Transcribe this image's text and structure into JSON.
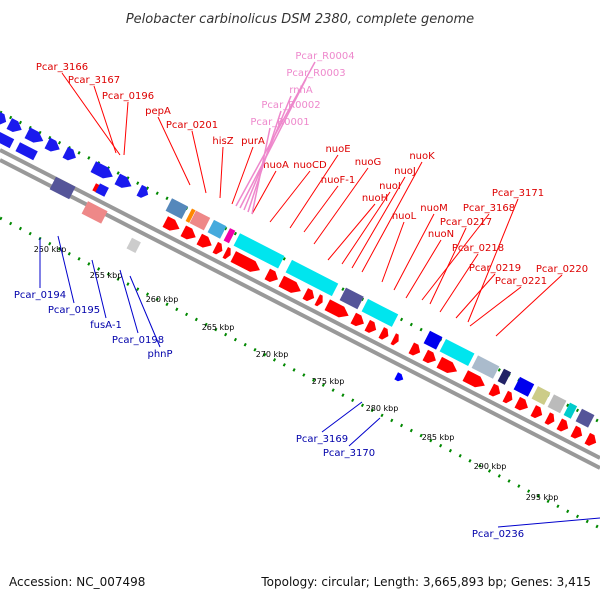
{
  "title": "Pelobacter carbinolicus DSM 2380, complete genome",
  "footer": {
    "accession": "Accession: NC_007498",
    "summary": "Topology: circular; Length: 3,665,893 bp; Genes: 3,415"
  },
  "colors": {
    "forward_gene": "#ff0000",
    "reverse_gene": "#0000ff",
    "rna_label": "#ee88cc",
    "nuo_operon": "#00e5ee",
    "gc_skew_dots": "#008800",
    "backbone": "#888888"
  },
  "ticks": [
    "250 kbp",
    "255 kbp",
    "260 kbp",
    "265 kbp",
    "270 kbp",
    "275 kbp",
    "280 kbp",
    "285 kbp",
    "290 kbp",
    "295 kbp"
  ],
  "labels_forward": [
    "Pcar_3166",
    "Pcar_3167",
    "Pcar_0196",
    "pepA",
    "Pcar_0201",
    "hisZ",
    "purA",
    "nuoA",
    "nuoCD",
    "nuoE",
    "nuoF-1",
    "nuoG",
    "nuoH",
    "nuoI",
    "nuoJ",
    "nuoK",
    "nuoL",
    "nuoM",
    "nuoN",
    "Pcar_3168",
    "Pcar_0217",
    "Pcar_3171",
    "Pcar_0218",
    "Pcar_0219",
    "Pcar_0220",
    "Pcar_0221"
  ],
  "labels_rna": [
    "Pcar_R0004",
    "Pcar_R0003",
    "rnhA",
    "Pcar_R0002",
    "Pcar_R0001"
  ],
  "labels_reverse": [
    "Pcar_0194",
    "Pcar_0195",
    "fusA-1",
    "Pcar_0198",
    "phnP",
    "Pcar_3169",
    "Pcar_3170",
    "Pcar_0236"
  ]
}
